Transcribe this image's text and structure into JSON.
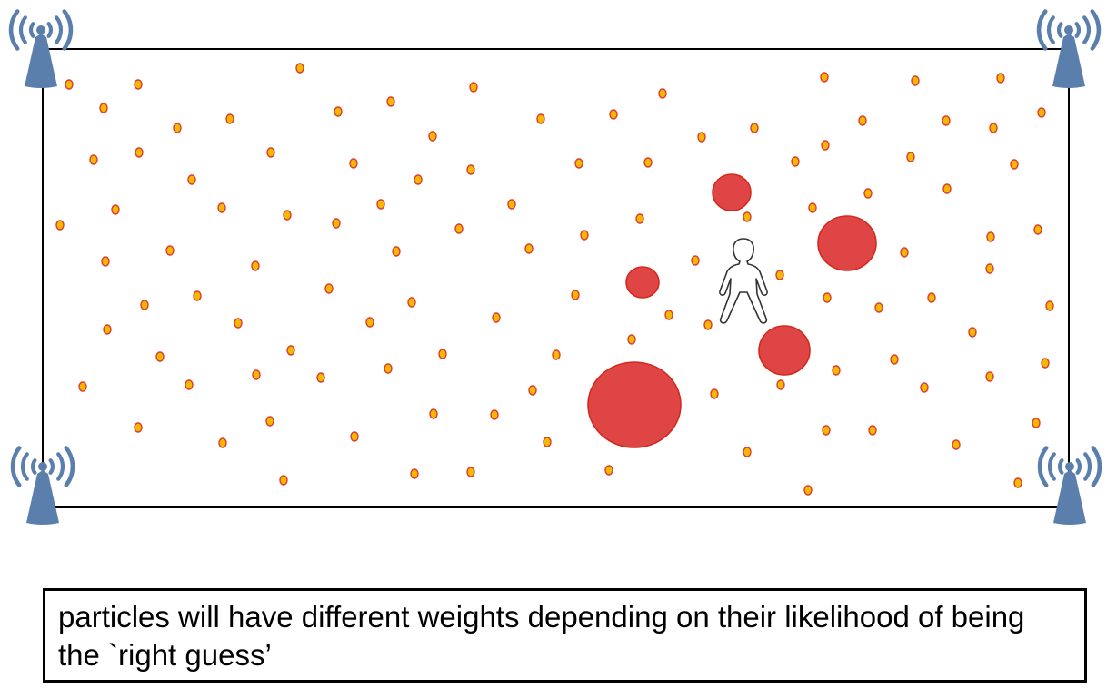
{
  "caption": "particles will have different weights depending on their likelihood of being the `right guess’",
  "colors": {
    "particle_fill": "#f5b800",
    "particle_stroke": "#dd3b2e",
    "weighted_fill": "#e04545",
    "weighted_stroke": "#d22a1e",
    "antenna": "#5b7fad",
    "room_border": "#000000"
  },
  "icons": {
    "antennas": [
      "antenna-icon",
      "antenna-icon",
      "antenna-icon",
      "antenna-icon"
    ],
    "person": "person-icon"
  }
}
